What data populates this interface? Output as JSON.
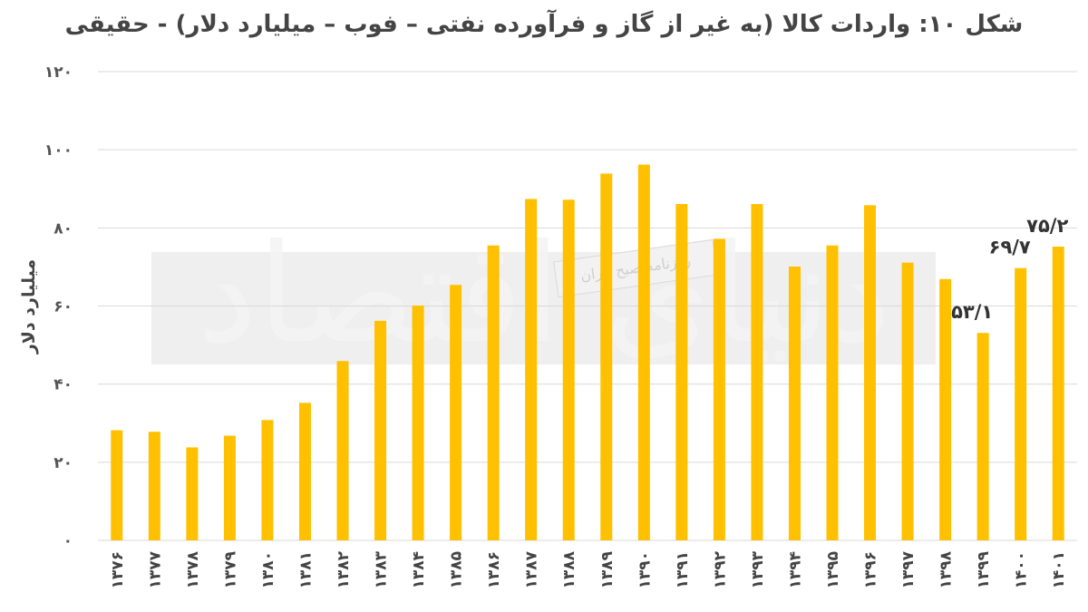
{
  "chart_data": {
    "type": "bar",
    "title": "شکل ۱۰: واردات کالا (به غیر از گاز و فرآورده نفتی – فوب – میلیارد دلار) - حقیقی",
    "ylabel": "میلیارد دلار",
    "xlabel": "",
    "ylim": [
      0,
      120
    ],
    "yticks": [
      0,
      20,
      40,
      60,
      80,
      100,
      120
    ],
    "ytick_labels": [
      "۰",
      "۲۰",
      "۴۰",
      "۶۰",
      "۸۰",
      "۱۰۰",
      "۱۲۰"
    ],
    "grid": true,
    "legend": "none",
    "categories": [
      "۱۳۷۶",
      "۱۳۷۷",
      "۱۳۷۸",
      "۱۳۷۹",
      "۱۳۸۰",
      "۱۳۸۱",
      "۱۳۸۲",
      "۱۳۸۳",
      "۱۳۸۴",
      "۱۳۸۵",
      "۱۳۸۶",
      "۱۳۸۷",
      "۱۳۸۸",
      "۱۳۸۹",
      "۱۳۹۰",
      "۱۳۹۱",
      "۱۳۹۲",
      "۱۳۹۳",
      "۱۳۹۴",
      "۱۳۹۵",
      "۱۳۹۶",
      "۱۳۹۷",
      "۱۳۹۸",
      "۱۳۹۹",
      "۱۴۰۰",
      "۱۴۰۱"
    ],
    "values": [
      28.2,
      27.8,
      23.8,
      26.8,
      30.8,
      35.2,
      45.9,
      56.2,
      60.1,
      65.4,
      75.5,
      87.4,
      87.2,
      93.9,
      96.2,
      86.1,
      77.2,
      86.1,
      70.1,
      75.5,
      85.8,
      71.1,
      66.9,
      53.1,
      69.7,
      75.2
    ],
    "data_labels": [
      {
        "index": 23,
        "text": "۵۳/۱"
      },
      {
        "index": 24,
        "text": "۶۹/۷"
      },
      {
        "index": 25,
        "text": "۷۵/۲"
      }
    ],
    "bar_color": "#ffc000",
    "grid_color": "#d9d9d9"
  },
  "watermark": {
    "logo_text": "دنیای اقتصاد",
    "caption": "روزنامه صبح ایران"
  }
}
